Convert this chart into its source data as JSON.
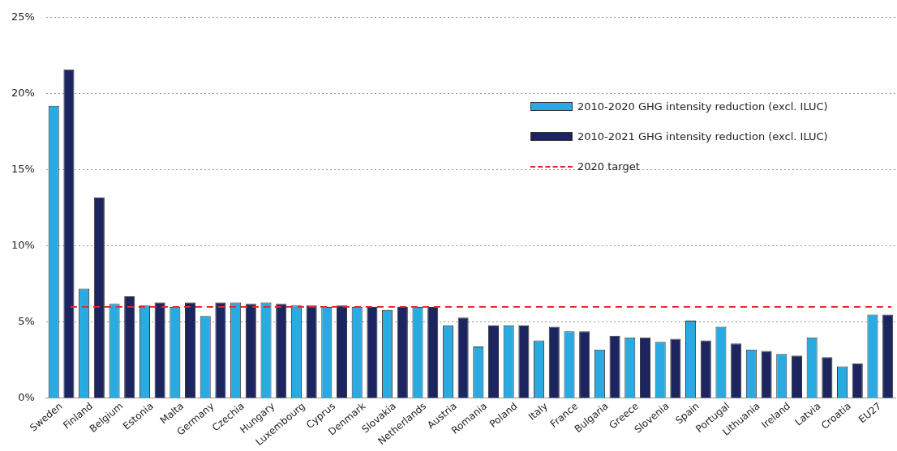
{
  "chart_data": {
    "type": "bar",
    "categories": [
      "Sweden",
      "Finland",
      "Belgium",
      "Estonia",
      "Malta",
      "Germany",
      "Czechia",
      "Hungary",
      "Luxembourg",
      "Cyprus",
      "Denmark",
      "Slovakia",
      "Netherlands",
      "Austria",
      "Romania",
      "Poland",
      "Italy",
      "France",
      "Bulgaria",
      "Greece",
      "Slovenia",
      "Spain",
      "Portugal",
      "Lithuania",
      "Ireland",
      "Latvia",
      "Croatia",
      "EU27"
    ],
    "series": [
      {
        "name": "2010-2020 GHG intensity reduction (excl. ILUC)",
        "color": "#29abe2",
        "values": [
          19.2,
          7.2,
          6.2,
          6.1,
          6.0,
          5.4,
          6.3,
          6.3,
          6.1,
          6.0,
          6.0,
          5.8,
          6.0,
          4.8,
          3.4,
          4.8,
          3.8,
          4.4,
          3.2,
          4.0,
          3.7,
          5.1,
          4.7,
          3.2,
          2.9,
          4.0,
          2.1,
          5.5
        ]
      },
      {
        "name": "2010-2021 GHG intensity reduction (excl. ILUC)",
        "color": "#1c2560",
        "values": [
          21.6,
          13.2,
          6.7,
          6.3,
          6.3,
          6.3,
          6.2,
          6.2,
          6.1,
          6.1,
          6.0,
          6.0,
          6.0,
          5.3,
          4.8,
          4.8,
          4.7,
          4.4,
          4.1,
          4.0,
          3.9,
          3.8,
          3.6,
          3.1,
          2.8,
          2.7,
          2.3,
          5.5
        ]
      }
    ],
    "ylim": [
      0,
      25
    ],
    "yticks": [
      {
        "value": 0,
        "label": "0%"
      },
      {
        "value": 5,
        "label": "5%"
      },
      {
        "value": 10,
        "label": "10%"
      },
      {
        "value": 15,
        "label": "15%"
      },
      {
        "value": 20,
        "label": "20%"
      },
      {
        "value": 25,
        "label": "25%"
      }
    ],
    "ref_lines": [
      {
        "axis": "y",
        "value": 6,
        "label": "2020 target",
        "color": "#e8262b",
        "line_style": "dashed"
      }
    ],
    "grid": "y",
    "legend": "top right"
  }
}
